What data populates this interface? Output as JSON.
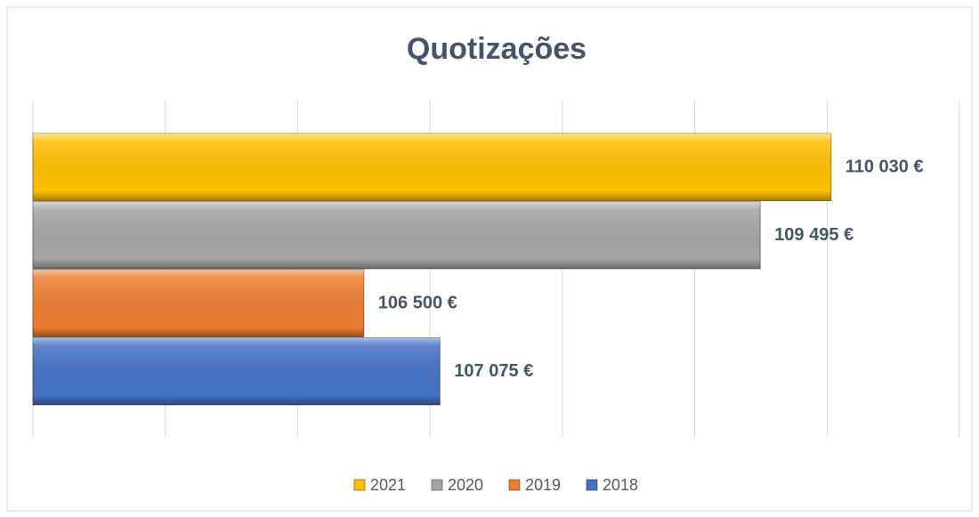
{
  "chart_data": {
    "type": "bar",
    "orientation": "horizontal",
    "title": "Quotizações",
    "series": [
      {
        "name": "2021",
        "color": "#ffc000",
        "values": [
          110030
        ],
        "value_labels": [
          "110 030 €"
        ]
      },
      {
        "name": "2020",
        "color": "#a5a5a5",
        "values": [
          109495
        ],
        "value_labels": [
          "109 495 €"
        ]
      },
      {
        "name": "2019",
        "color": "#ed7d31",
        "values": [
          106500
        ],
        "value_labels": [
          "106 500 €"
        ]
      },
      {
        "name": "2018",
        "color": "#4472c4",
        "values": [
          107075
        ],
        "value_labels": [
          "107 075 €"
        ]
      }
    ],
    "xlim": [
      104000,
      111000
    ],
    "xticks": [
      104000,
      105000,
      106000,
      107000,
      108000,
      109000,
      110000,
      111000
    ],
    "grid": true,
    "legend": "bottom"
  }
}
